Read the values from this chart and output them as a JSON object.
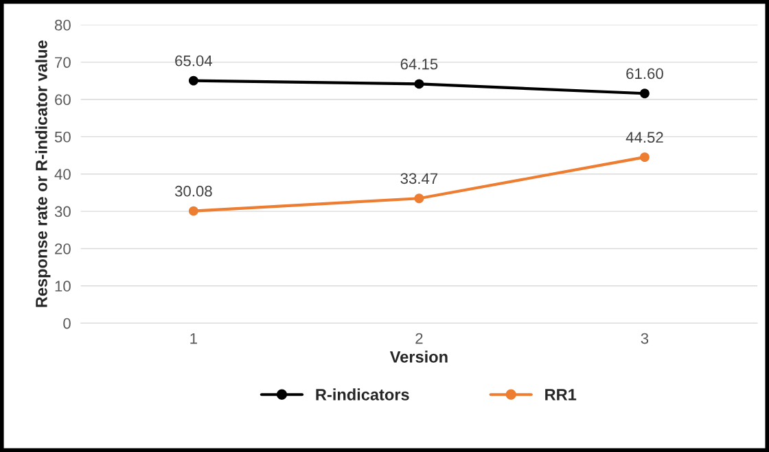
{
  "chart_data": {
    "type": "line",
    "xlabel": "Version",
    "ylabel": "Response rate or R-indicator value",
    "categories": [
      "1",
      "2",
      "3"
    ],
    "series": [
      {
        "name": "R-indicators",
        "color": "#000000",
        "values": [
          65.04,
          64.15,
          61.6
        ],
        "value_labels": [
          "65.04",
          "64.15",
          "61.60"
        ]
      },
      {
        "name": "RR1",
        "color": "#ed7d31",
        "values": [
          30.08,
          33.47,
          44.52
        ],
        "value_labels": [
          "30.08",
          "33.47",
          "44.52"
        ]
      }
    ],
    "ylim": [
      0,
      80
    ],
    "yticks": [
      0,
      10,
      20,
      30,
      40,
      50,
      60,
      70,
      80
    ],
    "grid": "y",
    "legend": "bottom",
    "marker": "circle",
    "line_style": "solid"
  }
}
